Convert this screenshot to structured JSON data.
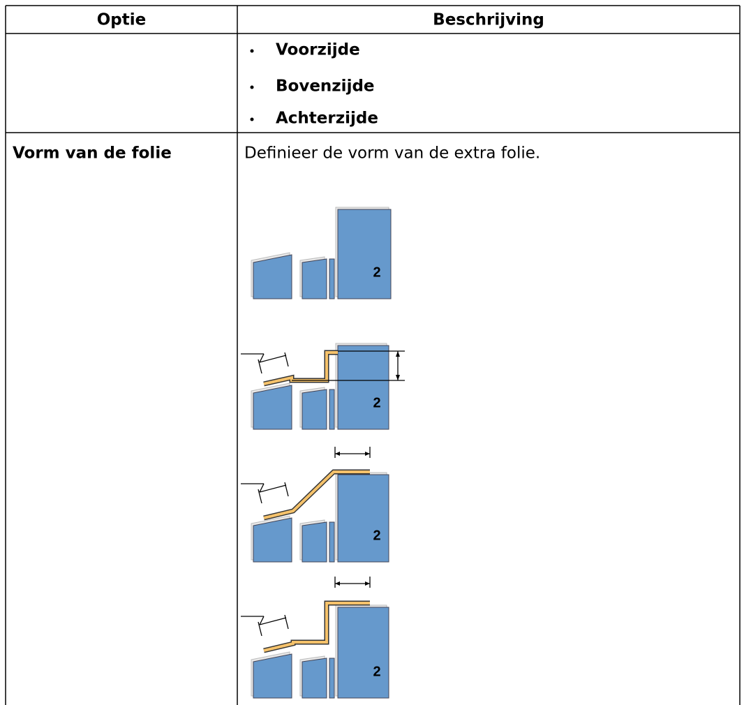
{
  "table": {
    "header": [
      "Optie",
      "Beschrijving"
    ],
    "rows": [
      {
        "items": [
          "Voorzijde",
          "Bovenzijde",
          "Achterzijde"
        ]
      },
      {
        "option": "Vorm van de folie",
        "description": "Definieer de vorm van de extra folie.",
        "figure_labels": [
          "2",
          "2",
          "2",
          "2"
        ]
      }
    ]
  }
}
